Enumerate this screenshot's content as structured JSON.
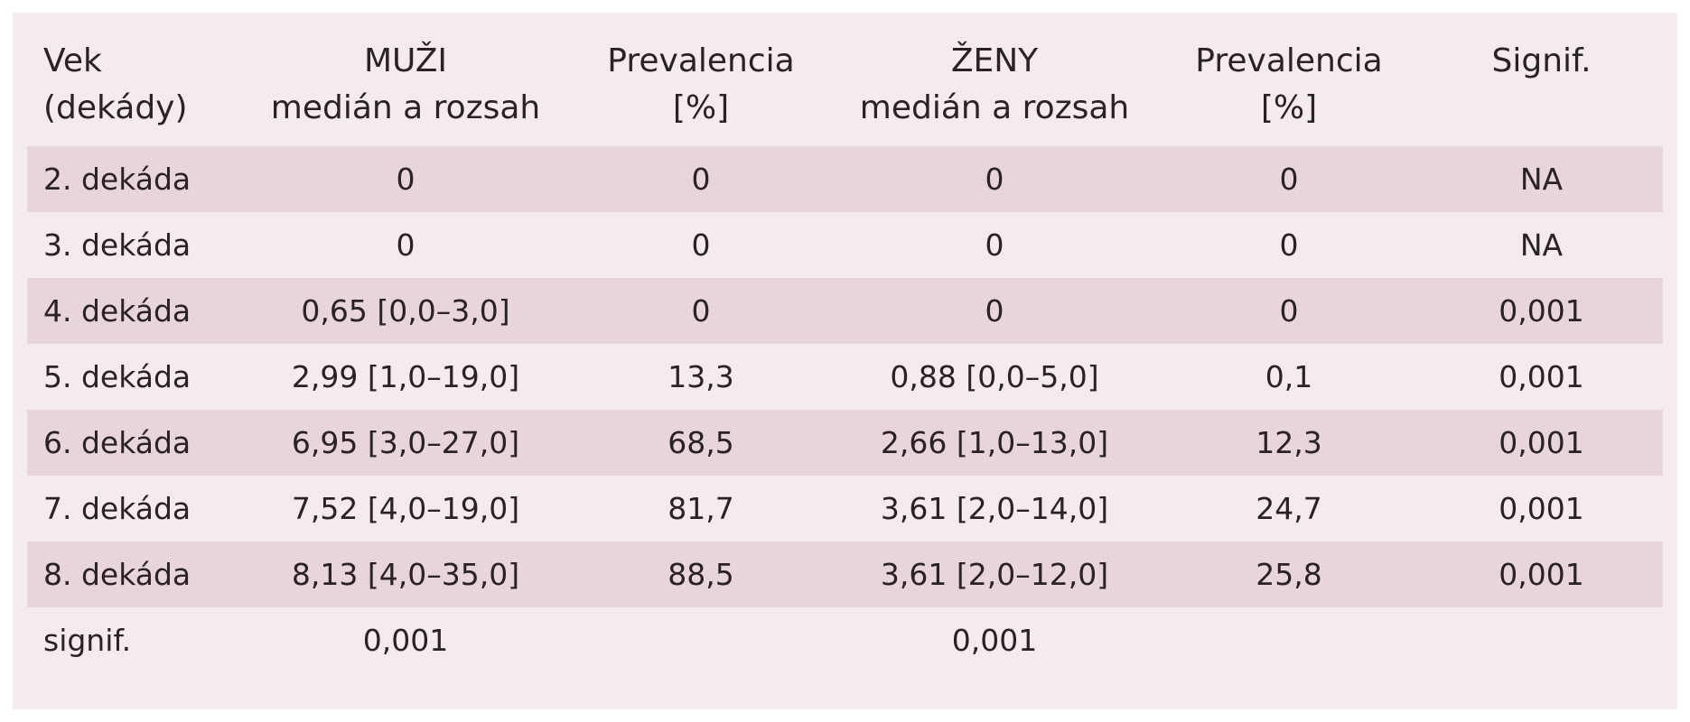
{
  "headers": [
    [
      "Vek",
      "(dekády)"
    ],
    [
      "MUŽI",
      "medián a rozsah"
    ],
    [
      "Prevalencia",
      "[%]"
    ],
    [
      "ŽENY",
      "medián a rozsah"
    ],
    [
      "Prevalencia",
      "[%]"
    ],
    [
      "Signif.",
      ""
    ]
  ],
  "rows": [
    [
      "2. dekáda",
      "0",
      "0",
      "0",
      "0",
      "NA"
    ],
    [
      "3. dekáda",
      "0",
      "0",
      "0",
      "0",
      "NA"
    ],
    [
      "4. dekáda",
      "0,65 [0,0–3,0]",
      "0",
      "0",
      "0",
      "0,001"
    ],
    [
      "5. dekáda",
      "2,99 [1,0–19,0]",
      "13,3",
      "0,88 [0,0–5,0]",
      "0,1",
      "0,001"
    ],
    [
      "6. dekáda",
      "6,95 [3,0–27,0]",
      "68,5",
      "2,66 [1,0–13,0]",
      "12,3",
      "0,001"
    ],
    [
      "7. dekáda",
      "7,52 [4,0–19,0]",
      "81,7",
      "3,61 [2,0–14,0]",
      "24,7",
      "0,001"
    ],
    [
      "8. dekáda",
      "8,13 [4,0–35,0]",
      "88,5",
      "3,61 [2,0–12,0]",
      "25,8",
      "0,001"
    ],
    [
      "signif.",
      "0,001",
      "",
      "0,001",
      "",
      ""
    ]
  ],
  "colors": {
    "background": "#f3ebee",
    "shaded_row": "#e8d4dc",
    "text": "#2a2326"
  }
}
